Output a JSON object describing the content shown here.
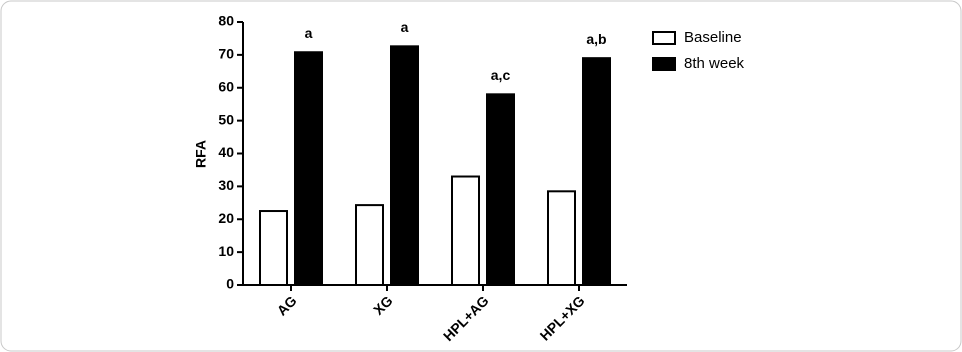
{
  "chart_data": {
    "type": "bar",
    "y_label": "RFA",
    "categories": [
      "AG",
      "XG",
      "HPL+AG",
      "HPL+XG"
    ],
    "series": [
      {
        "name": "Baseline",
        "color": "#ffffff",
        "values": [
          22.5,
          24.3,
          33,
          28.5
        ]
      },
      {
        "name": "8th week",
        "color": "#000000",
        "values": [
          70.8,
          72.6,
          58,
          69
        ]
      }
    ],
    "annotations": [
      "a",
      "a",
      "a,c",
      "a,b"
    ],
    "ylim": [
      0,
      80
    ],
    "yticks": [
      0,
      10,
      20,
      30,
      40,
      50,
      60,
      70,
      80
    ],
    "grid": false,
    "legend": "upper right"
  }
}
